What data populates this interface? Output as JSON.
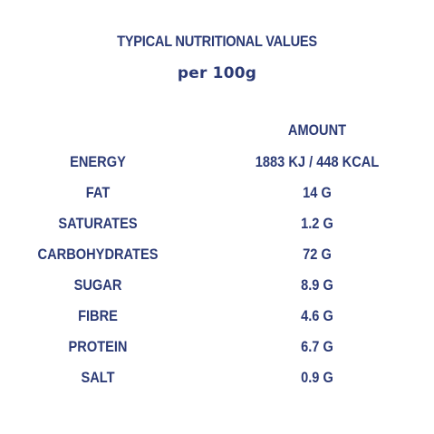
{
  "title": "TYPICAL NUTRITIONAL VALUES",
  "subtitle": "per 100g",
  "amount_header": "AMOUNT",
  "rows": [
    {
      "name": "ENERGY",
      "value": "1883 KJ / 448 KCAL"
    },
    {
      "name": "FAT",
      "value": "14 G"
    },
    {
      "name": "SATURATES",
      "value": "1.2 G"
    },
    {
      "name": "CARBOHYDRATES",
      "value": "72 G"
    },
    {
      "name": "SUGAR",
      "value": "8.9 G"
    },
    {
      "name": "FIBRE",
      "value": "4.6 G"
    },
    {
      "name": "PROTEIN",
      "value": "6.7 G"
    },
    {
      "name": "SALT",
      "value": "0.9 G"
    }
  ],
  "colors": {
    "text": "#2b3a75",
    "background": "#ffffff"
  }
}
